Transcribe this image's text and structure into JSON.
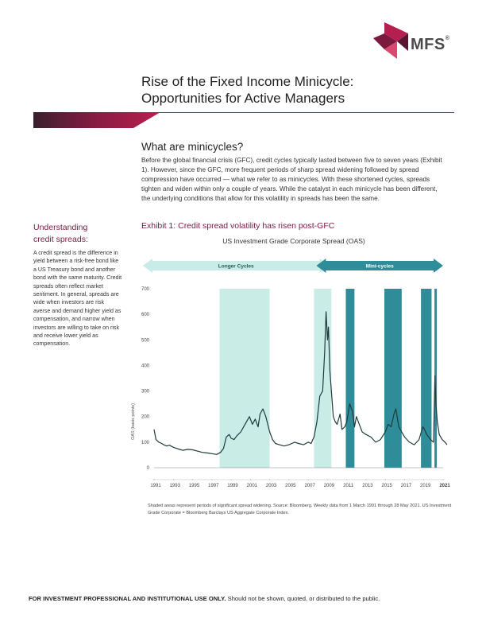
{
  "header": {
    "logo_text": "MFS",
    "logo_mark": "®",
    "title_line1": "Rise of the Fixed Income Minicycle:",
    "title_line2": "Opportunities for Active Managers"
  },
  "section": {
    "heading": "What are minicycles?",
    "body": "Before the global financial crisis (GFC), credit cycles typically lasted between five to seven years (Exhibit 1). However, since the GFC, more frequent periods of sharp spread widening followed by spread compression have occurred — what we refer to as minicycles. With these shortened cycles, spreads tighten and widen within only a couple of years. While the catalyst in each minicycle has been different, the underlying conditions that allow for this volatility in spreads has been the same."
  },
  "sidebar": {
    "heading_line1": "Understanding",
    "heading_line2": "credit spreads:",
    "body": "A credit spread is the difference in yield between a risk-free bond like a US Treasury bond and another bond with the same maturity. Credit spreads often reflect market sentiment. In general, spreads are wide when investors are risk averse and demand higher yield as compensation, and narrow when investors are willing to take on risk and receive lower yield as compensation."
  },
  "exhibit": {
    "title": "Exhibit 1: Credit spread volatility has risen post-GFC",
    "note": "Shaded areas represent periods of significant spread widening. Source: Bloomberg. Weekly data from 1 March 1991 through 28 May 2021. US Investment Grade Corporate = Bloomberg Barclays US Aggregate Corporate Index."
  },
  "chart_data": {
    "type": "line",
    "title": "US Investment Grade Corporate Spread (OAS)",
    "xlabel": "",
    "ylabel": "OAS (basis points)",
    "xlim": [
      1991,
      2021
    ],
    "ylim": [
      0,
      700
    ],
    "x_ticks": [
      "1991",
      "1993",
      "1995",
      "1997",
      "1999",
      "2001",
      "2003",
      "2005",
      "2007",
      "2009",
      "2011",
      "2013",
      "2015",
      "2017",
      "2019",
      "2021"
    ],
    "y_ticks": [
      "0",
      "100",
      "200",
      "300",
      "400",
      "500",
      "600",
      "700"
    ],
    "arrow_labels": {
      "longer": "Longer Cycles",
      "mini": "Mini-cycles"
    },
    "arrow_ranges": {
      "longer": [
        1991,
        2009
      ],
      "mini": [
        2009,
        2021.4
      ]
    },
    "shaded_periods": [
      {
        "start": 1997.8,
        "end": 2003.0,
        "style": "light"
      },
      {
        "start": 2007.6,
        "end": 2009.4,
        "style": "light"
      },
      {
        "start": 2010.9,
        "end": 2011.8,
        "style": "dark"
      },
      {
        "start": 2014.9,
        "end": 2016.7,
        "style": "dark"
      },
      {
        "start": 2018.7,
        "end": 2019.8,
        "style": "dark"
      },
      {
        "start": 2020.1,
        "end": 2020.35,
        "style": "dark"
      }
    ],
    "series": [
      {
        "x": [
          1991.0,
          1991.2,
          1991.5,
          1991.8,
          1992.0,
          1992.3,
          1992.6,
          1993.0,
          1993.4,
          1993.8,
          1994.0,
          1994.5,
          1995.0,
          1995.5,
          1996.0,
          1996.5,
          1997.0,
          1997.5,
          1997.9,
          1998.2,
          1998.5,
          1998.8,
          1999.0,
          1999.3,
          1999.6,
          2000.0,
          2000.3,
          2000.6,
          2000.9,
          2001.2,
          2001.5,
          2001.8,
          2002.0,
          2002.3,
          2002.6,
          2002.8,
          2003.0,
          2003.3,
          2003.6,
          2004.0,
          2004.5,
          2005.0,
          2005.3,
          2005.6,
          2006.0,
          2006.5,
          2007.0,
          2007.3,
          2007.6,
          2007.9,
          2008.2,
          2008.5,
          2008.7,
          2008.85,
          2009.0,
          2009.1,
          2009.25,
          2009.4,
          2009.6,
          2009.8,
          2010.0,
          2010.3,
          2010.5,
          2010.8,
          2011.0,
          2011.3,
          2011.6,
          2011.8,
          2012.0,
          2012.3,
          2012.6,
          2013.0,
          2013.5,
          2014.0,
          2014.5,
          2015.0,
          2015.3,
          2015.6,
          2015.9,
          2016.1,
          2016.4,
          2016.7,
          2017.0,
          2017.5,
          2018.0,
          2018.5,
          2018.9,
          2019.0,
          2019.3,
          2019.7,
          2020.0,
          2020.15,
          2020.25,
          2020.4,
          2020.6,
          2020.9,
          2021.2,
          2021.4
        ],
        "values": [
          150,
          110,
          100,
          95,
          90,
          85,
          88,
          80,
          75,
          70,
          68,
          72,
          70,
          65,
          60,
          58,
          55,
          52,
          60,
          75,
          120,
          130,
          115,
          110,
          125,
          140,
          160,
          180,
          200,
          170,
          190,
          160,
          210,
          230,
          200,
          170,
          140,
          110,
          95,
          90,
          85,
          90,
          95,
          100,
          95,
          90,
          100,
          95,
          120,
          180,
          280,
          300,
          450,
          610,
          500,
          550,
          380,
          300,
          200,
          180,
          170,
          210,
          150,
          160,
          180,
          250,
          220,
          160,
          200,
          170,
          140,
          130,
          120,
          100,
          110,
          140,
          170,
          160,
          210,
          230,
          160,
          140,
          120,
          100,
          90,
          110,
          160,
          155,
          130,
          110,
          100,
          360,
          250,
          180,
          130,
          110,
          100,
          90
        ]
      }
    ]
  },
  "footer": {
    "bold": "FOR INVESTMENT PROFESSIONAL AND INSTITUTIONAL USE ONLY.",
    "rest": " Should not be shown, quoted, or distributed to the public."
  },
  "colors": {
    "brand": "#7b1a3e",
    "light_shade": "#c9ece6",
    "dark_shade": "#2f8d9a",
    "arrow_light": "#c9ece6",
    "arrow_dark": "#2f8d9a",
    "line": "#1f3b3b"
  },
  "icons": {
    "logo": "mfs-logo-icon"
  }
}
